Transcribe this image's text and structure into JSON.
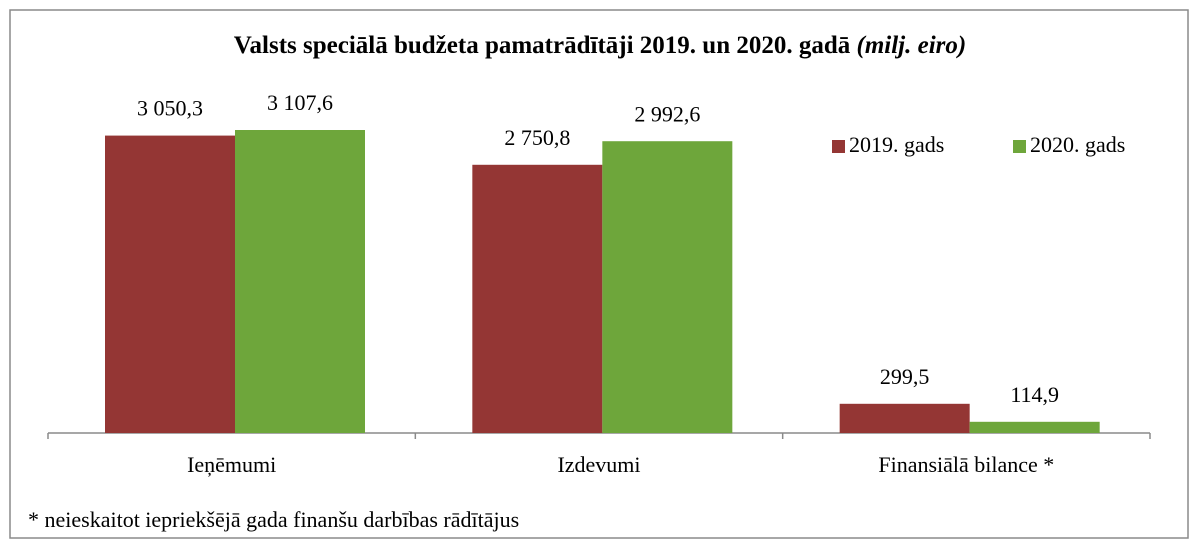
{
  "chart_data": {
    "type": "bar",
    "title": "Valsts speciālā budžeta pamatrādītāji  2019. un 2020. gadā",
    "unit": "(milj. eiro)",
    "categories": [
      "Ieņēmumi",
      "Izdevumi",
      "Finansiālā  bilance *"
    ],
    "series": [
      {
        "name": "2019. gads",
        "color": "#943634",
        "values": [
          3050.3,
          2750.8,
          299.5
        ],
        "value_labels": [
          "3 050,3",
          "2 750,8",
          "299,5"
        ]
      },
      {
        "name": "2020. gads",
        "color": "#6ea63b",
        "values": [
          3107.6,
          2992.6,
          114.9
        ],
        "value_labels": [
          "3 107,6",
          "2 992,6",
          "114,9"
        ]
      }
    ],
    "legend": "top-right",
    "footnote": "* neieskaitot iepriekšējā gada finanšu darbības rādītājus"
  }
}
